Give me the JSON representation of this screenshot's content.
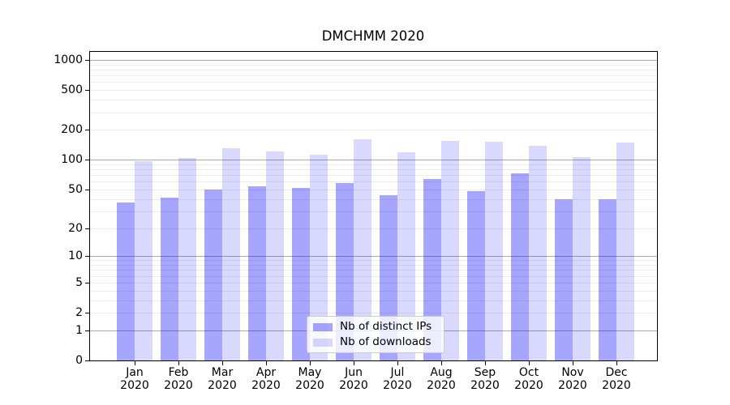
{
  "chart_data": {
    "type": "bar",
    "title": "DMCHMM 2020",
    "categories": [
      "Jan",
      "Feb",
      "Mar",
      "Apr",
      "May",
      "Jun",
      "Jul",
      "Aug",
      "Sep",
      "Oct",
      "Nov",
      "Dec"
    ],
    "category_year": "2020",
    "series": [
      {
        "name": "Nb of distinct IPs",
        "color": "rgba(0,0,255,0.35)",
        "color_hex": "#a6a6ff",
        "values": [
          37,
          41,
          50,
          54,
          52,
          58,
          44,
          64,
          48,
          73,
          40,
          40
        ]
      },
      {
        "name": "Nb of downloads",
        "color": "rgba(0,0,255,0.15)",
        "color_hex": "#d9d9ff",
        "values": [
          97,
          105,
          130,
          120,
          113,
          161,
          118,
          155,
          152,
          138,
          106,
          150
        ]
      }
    ],
    "xlabel": "",
    "ylabel": "",
    "yscale": "log1p",
    "ylim": [
      0,
      1227
    ],
    "yticks": [
      0,
      1,
      2,
      5,
      10,
      20,
      50,
      100,
      200,
      500,
      1000
    ],
    "y_major_gridlines": [
      1,
      10,
      100,
      1000
    ],
    "y_minor_gridlines": [
      2,
      3,
      4,
      5,
      6,
      7,
      8,
      9,
      20,
      30,
      40,
      50,
      60,
      70,
      80,
      90,
      200,
      300,
      400,
      500,
      600,
      700,
      800,
      900
    ],
    "grid": true,
    "legend_position": "bottom-center-inside"
  },
  "colors": {
    "background": "#ffffff",
    "text": "#000000",
    "spine": "#000000",
    "major_grid": "#ababab",
    "minor_grid": "#ececec",
    "legend_bg": "rgba(255,255,255,0.8)",
    "legend_border": "#cccccc"
  }
}
